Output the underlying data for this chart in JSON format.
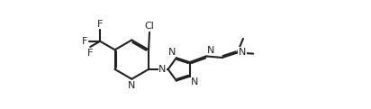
{
  "bg_color": "#ffffff",
  "line_color": "#222222",
  "line_width": 1.5,
  "font_size": 8.0,
  "fig_w": 4.12,
  "fig_h": 1.21,
  "dpi": 100,
  "xlim": [
    -0.8,
    8.8
  ],
  "ylim": [
    -1.15,
    1.45
  ]
}
